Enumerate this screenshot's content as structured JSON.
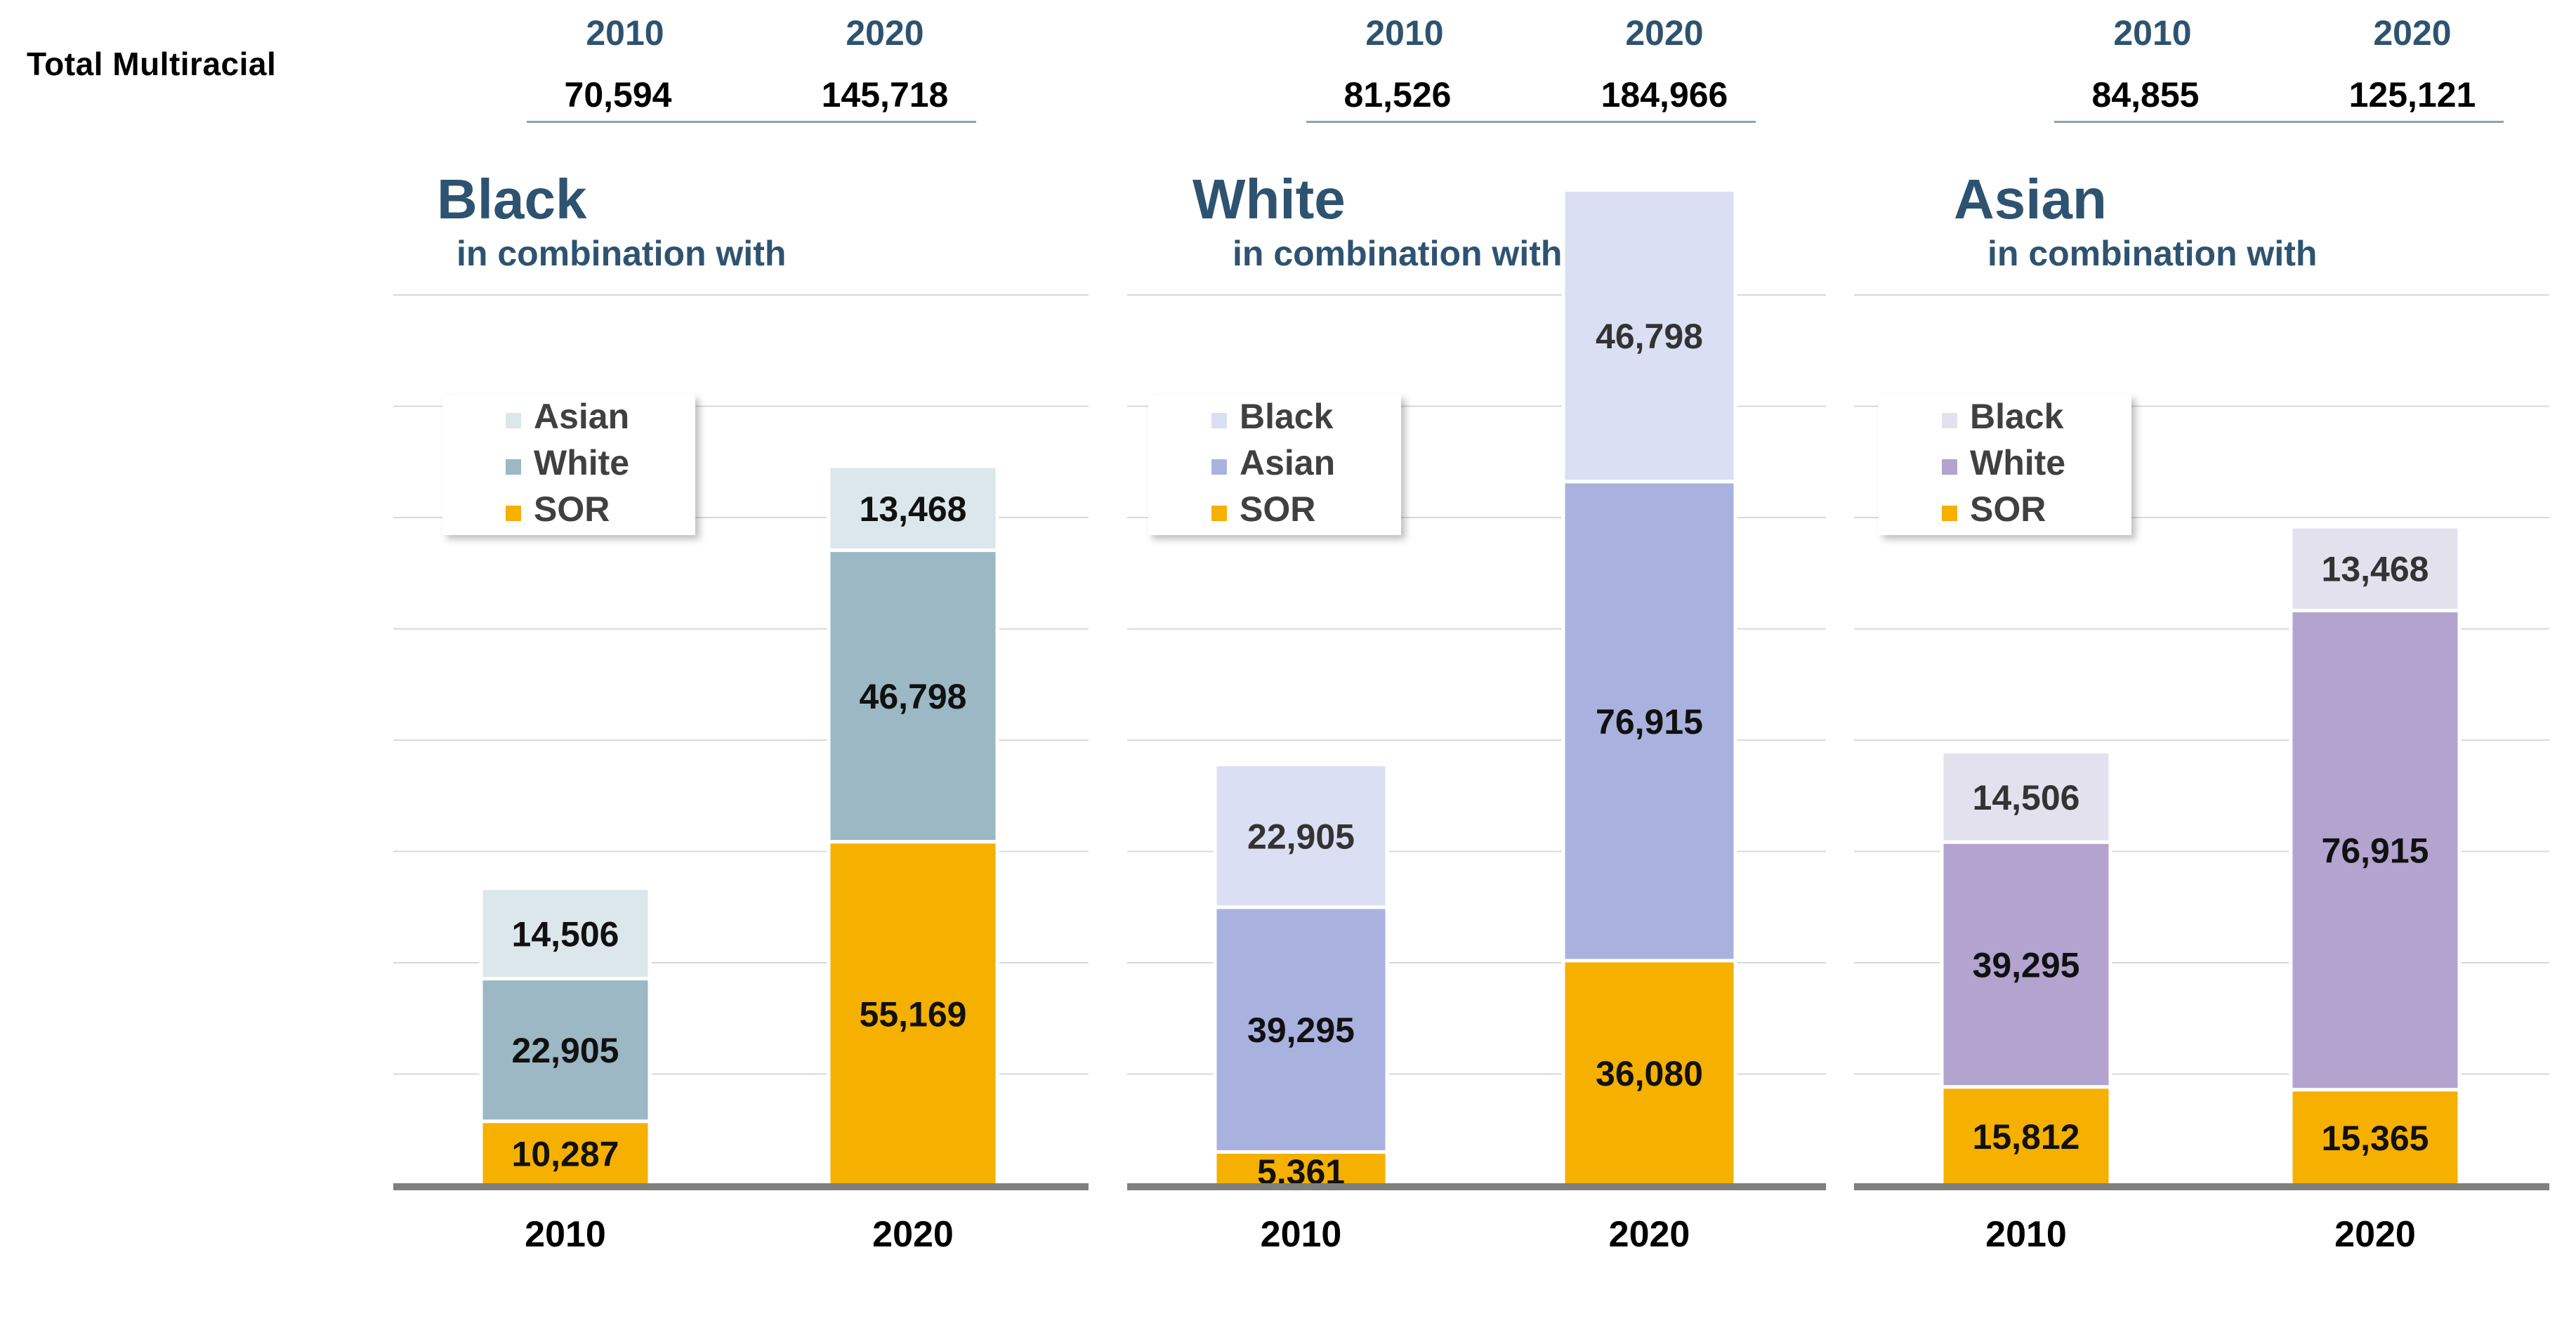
{
  "row_label": "Total  Multiracial",
  "panels": [
    {
      "title": "Black",
      "subtitle": "in combination with",
      "totals": [
        {
          "year": "2010",
          "value": "70,594"
        },
        {
          "year": "2020",
          "value": "145,718"
        }
      ]
    },
    {
      "title": "White",
      "subtitle": "in combination with",
      "totals": [
        {
          "year": "2010",
          "value": "81,526"
        },
        {
          "year": "2020",
          "value": "184,966"
        }
      ]
    },
    {
      "title": "Asian",
      "subtitle": "in combination with",
      "totals": [
        {
          "year": "2010",
          "value": "84,855"
        },
        {
          "year": "2020",
          "value": "125,121"
        }
      ]
    }
  ],
  "chart_data": [
    {
      "type": "bar",
      "stacked": true,
      "title": "Black",
      "subtitle": "in combination with",
      "categories": [
        "2010",
        "2020"
      ],
      "series": [
        {
          "name": "SOR",
          "values": [
            10287,
            55169
          ],
          "color": "#f5b000"
        },
        {
          "name": "White",
          "values": [
            22905,
            46798
          ],
          "color": "#9bb8c4"
        },
        {
          "name": "Asian",
          "values": [
            14506,
            13468
          ],
          "color": "#dbe7ea"
        }
      ],
      "ylim": [
        0,
        160000
      ],
      "grid": true,
      "legend": "top-left"
    },
    {
      "type": "bar",
      "stacked": true,
      "title": "White",
      "subtitle": "in combination with",
      "categories": [
        "2010",
        "2020"
      ],
      "series": [
        {
          "name": "SOR",
          "values": [
            5361,
            36080
          ],
          "color": "#f5b000"
        },
        {
          "name": "Asian",
          "values": [
            39295,
            76915
          ],
          "color": "#a9b2df"
        },
        {
          "name": "Black",
          "values": [
            22905,
            46798
          ],
          "color": "#dbdff3"
        }
      ],
      "ylim": [
        0,
        160000
      ],
      "grid": true,
      "legend": "top-left"
    },
    {
      "type": "bar",
      "stacked": true,
      "title": "Asian",
      "subtitle": "in combination with",
      "categories": [
        "2010",
        "2020"
      ],
      "series": [
        {
          "name": "SOR",
          "values": [
            15812,
            15365
          ],
          "color": "#f5b000"
        },
        {
          "name": "White",
          "values": [
            39295,
            76915
          ],
          "color": "#b2a3cf"
        },
        {
          "name": "Black",
          "values": [
            14506,
            13468
          ],
          "color": "#e4e1ef"
        }
      ],
      "ylim": [
        0,
        160000
      ],
      "grid": true,
      "legend": "top-left"
    }
  ]
}
